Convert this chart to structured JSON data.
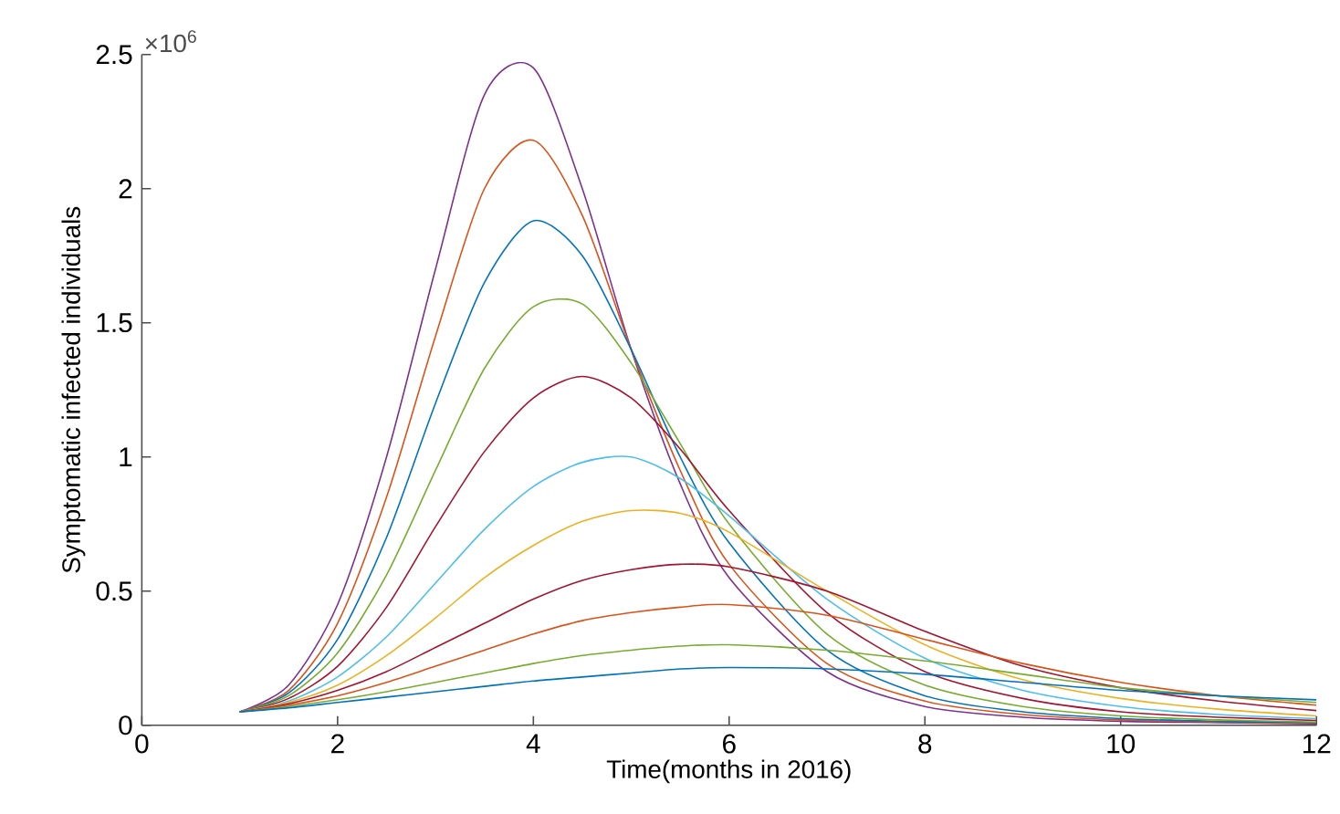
{
  "chart_data": {
    "type": "line",
    "xlabel": "Time(months in 2016)",
    "ylabel": "Symptomatic infected individuals",
    "annotations": [
      "×10$^{6}$"
    ],
    "xlim": [
      0,
      12
    ],
    "xticks": [
      0,
      2,
      4,
      6,
      8,
      10,
      12
    ],
    "ylim": [
      0,
      2.5
    ],
    "yticks": [
      0,
      0.5,
      1,
      1.5,
      2,
      2.5
    ],
    "x": [
      1,
      1.5,
      2,
      2.5,
      3,
      3.5,
      4,
      4.5,
      5,
      5.5,
      6,
      7,
      8,
      9,
      10,
      11,
      12
    ],
    "series": [
      {
        "color": "#7e2f8e",
        "values": [
          0.05,
          0.15,
          0.45,
          1.0,
          1.7,
          2.35,
          2.45,
          2.0,
          1.4,
          0.9,
          0.55,
          0.2,
          0.07,
          0.03,
          0.015,
          0.01,
          0.005
        ]
      },
      {
        "color": "#d95319",
        "values": [
          0.05,
          0.13,
          0.38,
          0.85,
          1.45,
          2.0,
          2.18,
          1.9,
          1.4,
          0.95,
          0.6,
          0.23,
          0.09,
          0.04,
          0.02,
          0.012,
          0.008
        ]
      },
      {
        "color": "#0072bd",
        "values": [
          0.05,
          0.12,
          0.32,
          0.7,
          1.2,
          1.65,
          1.88,
          1.75,
          1.4,
          1.0,
          0.68,
          0.28,
          0.11,
          0.05,
          0.025,
          0.015,
          0.01
        ]
      },
      {
        "color": "#77ac30",
        "values": [
          0.05,
          0.11,
          0.27,
          0.56,
          0.95,
          1.33,
          1.56,
          1.57,
          1.35,
          1.05,
          0.75,
          0.34,
          0.15,
          0.07,
          0.035,
          0.02,
          0.012
        ]
      },
      {
        "color": "#a2142f",
        "values": [
          0.05,
          0.1,
          0.22,
          0.44,
          0.74,
          1.02,
          1.22,
          1.3,
          1.22,
          1.03,
          0.8,
          0.42,
          0.2,
          0.1,
          0.05,
          0.03,
          0.018
        ]
      },
      {
        "color": "#4dbeee",
        "values": [
          0.05,
          0.09,
          0.18,
          0.33,
          0.53,
          0.73,
          0.89,
          0.98,
          1.0,
          0.92,
          0.78,
          0.47,
          0.25,
          0.13,
          0.07,
          0.04,
          0.025
        ]
      },
      {
        "color": "#edb120",
        "values": [
          0.05,
          0.085,
          0.15,
          0.26,
          0.4,
          0.55,
          0.67,
          0.76,
          0.8,
          0.79,
          0.72,
          0.5,
          0.3,
          0.17,
          0.1,
          0.06,
          0.035
        ]
      },
      {
        "color": "#a2142f",
        "values": [
          0.05,
          0.08,
          0.13,
          0.2,
          0.29,
          0.38,
          0.47,
          0.54,
          0.58,
          0.6,
          0.59,
          0.5,
          0.35,
          0.22,
          0.14,
          0.09,
          0.055
        ]
      },
      {
        "color": "#d95319",
        "values": [
          0.05,
          0.075,
          0.11,
          0.16,
          0.22,
          0.28,
          0.34,
          0.39,
          0.42,
          0.44,
          0.45,
          0.41,
          0.32,
          0.23,
          0.16,
          0.11,
          0.075
        ]
      },
      {
        "color": "#77ac30",
        "values": [
          0.05,
          0.07,
          0.095,
          0.125,
          0.16,
          0.195,
          0.23,
          0.26,
          0.28,
          0.295,
          0.3,
          0.28,
          0.24,
          0.19,
          0.14,
          0.11,
          0.085
        ]
      },
      {
        "color": "#0072bd",
        "values": [
          0.05,
          0.065,
          0.085,
          0.105,
          0.125,
          0.145,
          0.165,
          0.18,
          0.195,
          0.21,
          0.215,
          0.21,
          0.19,
          0.16,
          0.13,
          0.11,
          0.095
        ]
      }
    ]
  }
}
